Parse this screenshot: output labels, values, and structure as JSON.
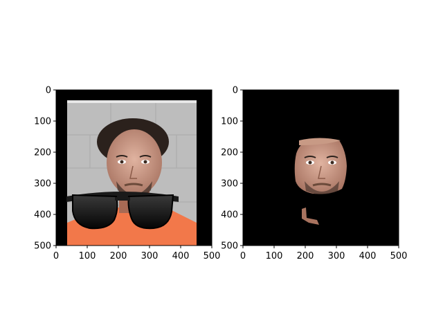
{
  "chart_data": [
    {
      "type": "image",
      "title": "",
      "xlabel": "",
      "ylabel": "",
      "xlim": [
        0,
        500
      ],
      "ylim": [
        500,
        0
      ],
      "xticks": [
        0,
        100,
        200,
        300,
        400,
        500
      ],
      "yticks": [
        0,
        100,
        200,
        300,
        400,
        500
      ],
      "grid": false,
      "legend": "none",
      "content": "mugshot photo with sunglasses overlay",
      "colors": {
        "background": "#000000",
        "wall": "#bdbdbd",
        "shirt": "#f2784a",
        "lenses": "#111111"
      }
    },
    {
      "type": "image",
      "title": "",
      "xlabel": "",
      "ylabel": "",
      "xlim": [
        0,
        500
      ],
      "ylim": [
        500,
        0
      ],
      "xticks": [
        0,
        100,
        200,
        300,
        400,
        500
      ],
      "yticks": [
        0,
        100,
        200,
        300,
        400,
        500
      ],
      "grid": false,
      "legend": "none",
      "content": "face region masked on black background",
      "colors": {
        "background": "#000000",
        "skin": "#c89a85"
      }
    }
  ]
}
